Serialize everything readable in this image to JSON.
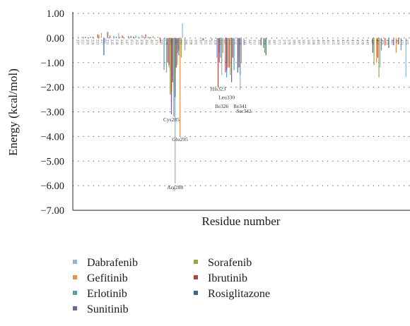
{
  "chart_data": {
    "type": "bar",
    "xlabel": "Residue number",
    "ylabel": "Energy (kcal/mol)",
    "ylim": [
      -7.0,
      1.0
    ],
    "yticks": [
      "1.00",
      "0.00",
      "−1.00",
      "−2.00",
      "−3.00",
      "−4.00",
      "−5.00",
      "−6.00",
      "−7.00"
    ],
    "ytick_values": [
      1,
      0,
      -1,
      -2,
      -3,
      -4,
      -5,
      -6,
      -7
    ],
    "xlim": [
      207,
      477
    ],
    "xticks": [
      207,
      211,
      215,
      219,
      223,
      227,
      231,
      235,
      239,
      243,
      247,
      251,
      255,
      259,
      263,
      267,
      271,
      275,
      279,
      283,
      287,
      291,
      295,
      299,
      303,
      307,
      311,
      315,
      319,
      323,
      327,
      331,
      335,
      339,
      343,
      347,
      351,
      355,
      359,
      363,
      367,
      371,
      375,
      379,
      383,
      387,
      391,
      395,
      399,
      403,
      407,
      411,
      415,
      419,
      423,
      427,
      431,
      435,
      439,
      443,
      447,
      451,
      455,
      459,
      463,
      467,
      471,
      475
    ],
    "grid": "horizontal dotted",
    "legend_position": "bottom",
    "series": [
      {
        "name": "Dabrafenib",
        "color": "#8fb3d9",
        "points": [
          [
            209,
            0.06
          ],
          [
            231,
            -0.22
          ],
          [
            242,
            0.2
          ],
          [
            262,
            0.1
          ],
          [
            283,
            -1.2
          ],
          [
            285,
            -2.6
          ],
          [
            287,
            -2.0
          ],
          [
            288,
            -5.9
          ],
          [
            294,
            0.6
          ],
          [
            310,
            -0.08
          ],
          [
            322,
            -0.8
          ],
          [
            326,
            -1.5
          ],
          [
            330,
            -1.2
          ],
          [
            341,
            -2.1
          ],
          [
            344,
            -0.3
          ],
          [
            455,
            -1.2
          ],
          [
            476,
            -1.6
          ]
        ]
      },
      {
        "name": "Gefitinib",
        "color": "#e8914a",
        "points": [
          [
            213,
            0.05
          ],
          [
            228,
            0.2
          ],
          [
            246,
            0.06
          ],
          [
            261,
            0.12
          ],
          [
            270,
            0.08
          ],
          [
            284,
            -1.3
          ],
          [
            286,
            -1.6
          ],
          [
            290,
            -1.1
          ],
          [
            292,
            -4.0
          ],
          [
            296,
            -0.5
          ],
          [
            318,
            -0.1
          ],
          [
            326,
            -1.0
          ],
          [
            331,
            -1.2
          ],
          [
            342,
            -1.0
          ],
          [
            452,
            -1.0
          ],
          [
            468,
            -0.6
          ]
        ]
      },
      {
        "name": "Erlotinib",
        "color": "#4f9fb1",
        "points": [
          [
            219,
            0.05
          ],
          [
            238,
            0.08
          ],
          [
            256,
            0.1
          ],
          [
            279,
            -1.3
          ],
          [
            285,
            -2.8
          ],
          [
            287,
            -3.2
          ],
          [
            291,
            -0.7
          ],
          [
            325,
            -0.8
          ],
          [
            330,
            -1.6
          ],
          [
            336,
            -1.3
          ],
          [
            341,
            -1.5
          ],
          [
            360,
            -0.4
          ],
          [
            456,
            -0.5
          ],
          [
            472,
            -0.5
          ]
        ]
      },
      {
        "name": "Sunitinib",
        "color": "#7a5ba5",
        "points": [
          [
            221,
            0.05
          ],
          [
            235,
            0.1
          ],
          [
            250,
            0.08
          ],
          [
            266,
            0.05
          ],
          [
            282,
            -1.0
          ],
          [
            285,
            -3.1
          ],
          [
            289,
            -1.2
          ],
          [
            311,
            -0.1
          ],
          [
            324,
            -1.0
          ],
          [
            330,
            -1.3
          ],
          [
            334,
            -1.8
          ],
          [
            340,
            -1.0
          ],
          [
            466,
            -0.3
          ]
        ]
      },
      {
        "name": "Sorafenib",
        "color": "#8eaa4a",
        "points": [
          [
            212,
            0.04
          ],
          [
            226,
            0.12
          ],
          [
            243,
            0.05
          ],
          [
            258,
            0.06
          ],
          [
            274,
            0.05
          ],
          [
            281,
            -1.4
          ],
          [
            284,
            -2.3
          ],
          [
            287,
            -1.8
          ],
          [
            293,
            -0.8
          ],
          [
            327,
            -0.6
          ],
          [
            333,
            -1.5
          ],
          [
            340,
            -0.8
          ],
          [
            361,
            -0.6
          ],
          [
            450,
            -1.1
          ],
          [
            454,
            -1.6
          ]
        ]
      },
      {
        "name": "Ibrutinib",
        "color": "#b0473e",
        "points": [
          [
            217,
            0.03
          ],
          [
            225,
            0.15
          ],
          [
            233,
            0.25
          ],
          [
            245,
            0.1
          ],
          [
            252,
            0.08
          ],
          [
            264,
            0.15
          ],
          [
            276,
            -0.2
          ],
          [
            283,
            -1.1
          ],
          [
            285,
            -2.2
          ],
          [
            288,
            -1.4
          ],
          [
            290,
            -0.6
          ],
          [
            323,
            -2.0
          ],
          [
            329,
            -1.4
          ],
          [
            332,
            -1.2
          ],
          [
            335,
            -0.8
          ],
          [
            340,
            -1.2
          ],
          [
            358,
            -0.3
          ],
          [
            453,
            -0.8
          ],
          [
            459,
            -0.3
          ],
          [
            470,
            -0.25
          ]
        ]
      },
      {
        "name": "Rosiglitazone",
        "color": "#3f6494",
        "points": [
          [
            215,
            0.05
          ],
          [
            230,
            -0.7
          ],
          [
            240,
            0.05
          ],
          [
            254,
            0.06
          ],
          [
            268,
            0.04
          ],
          [
            286,
            -1.8
          ],
          [
            288,
            -2.4
          ],
          [
            291,
            -0.5
          ],
          [
            324,
            -0.6
          ],
          [
            330,
            -1.0
          ],
          [
            339,
            -1.4
          ],
          [
            362,
            -0.7
          ],
          [
            449,
            -0.6
          ],
          [
            462,
            -0.4
          ]
        ]
      }
    ],
    "annotations": [
      {
        "text": "Cys285",
        "x": 285,
        "y": -3.3
      },
      {
        "text": "Arg288",
        "x": 288,
        "y": -6.05
      },
      {
        "text": "Glu295",
        "x": 292,
        "y": -4.1
      },
      {
        "text": "His323",
        "x": 323,
        "y": -2.05
      },
      {
        "text": "Leu330",
        "x": 330,
        "y": -2.4
      },
      {
        "text": "Ile326",
        "x": 326,
        "y": -2.75
      },
      {
        "text": "Ile341",
        "x": 341,
        "y": -2.75
      },
      {
        "text": "Ser342",
        "x": 344,
        "y": -2.95
      }
    ]
  }
}
